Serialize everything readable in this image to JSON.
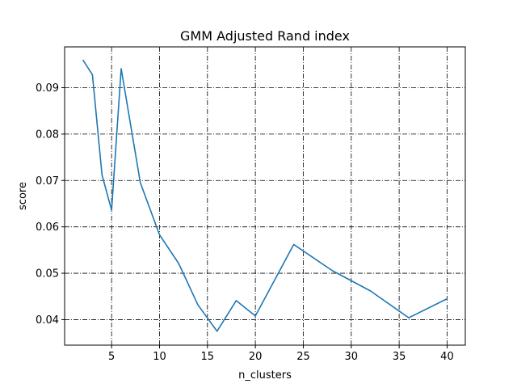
{
  "chart_data": {
    "type": "line",
    "title": "GMM Adjusted Rand index",
    "xlabel": "n_clusters",
    "ylabel": "score",
    "xlim": [
      0.1,
      41.9
    ],
    "ylim": [
      0.0345,
      0.0988
    ],
    "xticks": [
      5,
      10,
      15,
      20,
      25,
      30,
      35,
      40
    ],
    "yticks": [
      0.04,
      0.05,
      0.06,
      0.07,
      0.08,
      0.09
    ],
    "ytick_labels": [
      "0.04",
      "0.05",
      "0.06",
      "0.07",
      "0.08",
      "0.09"
    ],
    "grid": true,
    "series": [
      {
        "color": "#1f77b4",
        "x": [
          2,
          3,
          4,
          5,
          6,
          8,
          10,
          12,
          14,
          16,
          18,
          20,
          24,
          28,
          32,
          36,
          40
        ],
        "y": [
          0.096,
          0.0928,
          0.0712,
          0.0636,
          0.0941,
          0.0695,
          0.0583,
          0.0521,
          0.0432,
          0.0375,
          0.0441,
          0.0408,
          0.0562,
          0.0506,
          0.0462,
          0.0404,
          0.0445
        ]
      }
    ]
  }
}
